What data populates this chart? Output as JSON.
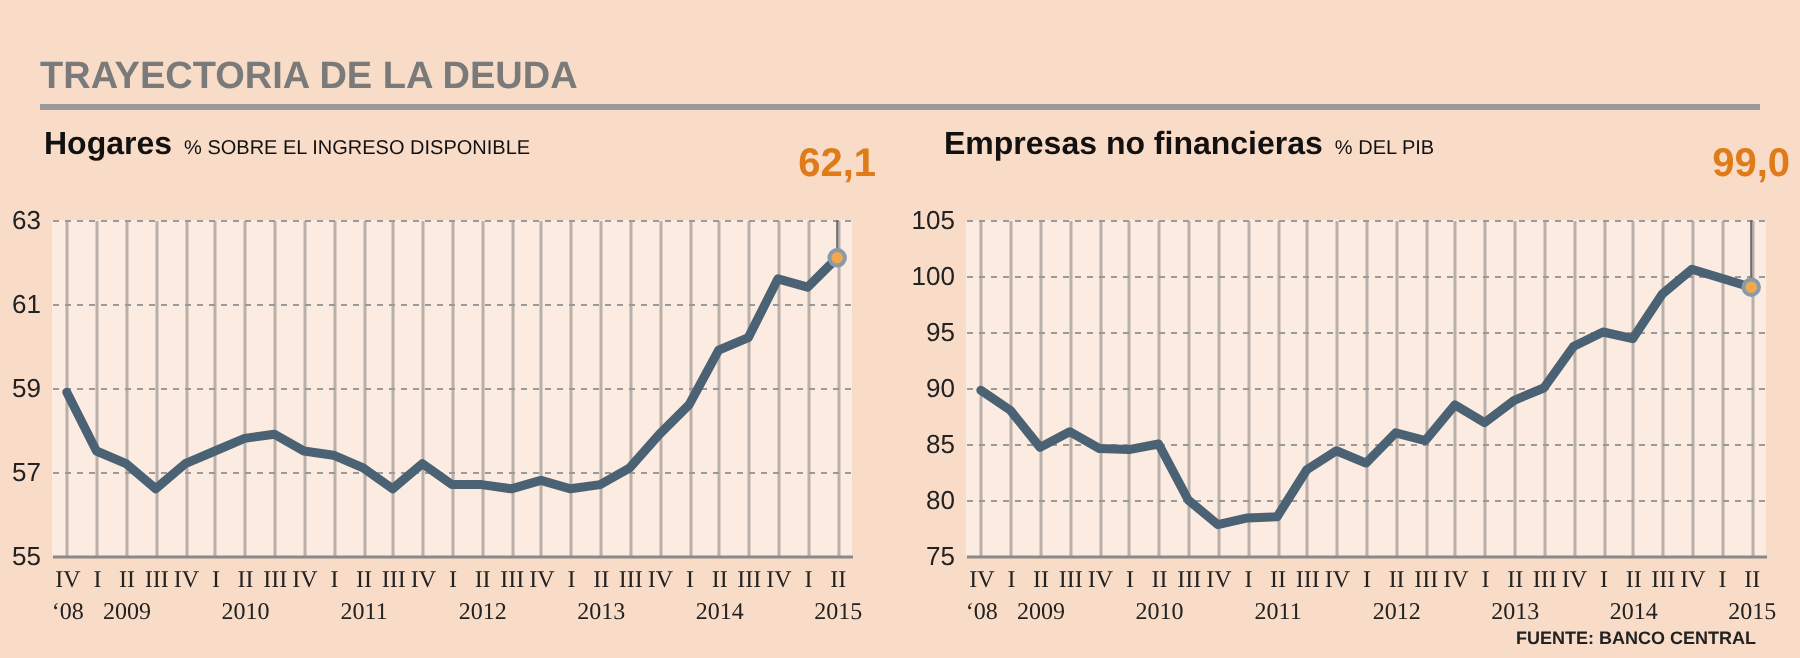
{
  "chart_data": [
    {
      "type": "line",
      "title": "Hogares",
      "subtitle": "% SOBRE EL INGRESO DISPONIBLE",
      "categories": [
        "IV ‘08",
        "I",
        "II 2009",
        "III",
        "IV",
        "I",
        "II 2010",
        "III",
        "IV",
        "I",
        "II 2011",
        "III",
        "IV",
        "I",
        "II 2012",
        "III",
        "IV",
        "I",
        "II 2013",
        "III",
        "IV",
        "I",
        "II 2014",
        "III",
        "IV",
        "I",
        "II 2015"
      ],
      "series": [
        {
          "color": "#4a6274",
          "values": [
            58.9,
            57.5,
            57.2,
            56.6,
            57.2,
            57.5,
            57.8,
            57.9,
            57.5,
            57.4,
            57.1,
            56.6,
            57.2,
            56.7,
            56.7,
            56.6,
            56.8,
            56.6,
            56.7,
            57.1,
            57.9,
            58.6,
            59.9,
            60.2,
            61.6,
            61.4,
            62.1
          ]
        }
      ],
      "ylim": [
        55,
        63
      ],
      "yticks": [
        55,
        57,
        59,
        61,
        63
      ],
      "grid": true,
      "line_style": "solid",
      "annotations": [
        "TRAYECTORIA DE LA DEUDA",
        {
          "text": "62,1",
          "x": "II 2015",
          "y": 62.1
        }
      ]
    },
    {
      "type": "line",
      "title": "Empresas no financieras",
      "subtitle": "% DEL PIB",
      "categories": [
        "IV ‘08",
        "I",
        "II 2009",
        "III",
        "IV",
        "I",
        "II 2010",
        "III",
        "IV",
        "I",
        "II 2011",
        "III",
        "IV",
        "I",
        "II 2012",
        "III",
        "IV",
        "I",
        "II 2013",
        "III",
        "IV",
        "I",
        "II 2014",
        "III",
        "IV",
        "I",
        "II 2015"
      ],
      "series": [
        {
          "color": "#4a6274",
          "values": [
            89.8,
            88.0,
            84.7,
            86.1,
            84.6,
            84.5,
            85.0,
            80.0,
            77.8,
            78.4,
            78.5,
            82.7,
            84.4,
            83.3,
            86.0,
            85.3,
            88.5,
            86.9,
            88.9,
            90.0,
            93.7,
            95.0,
            94.4,
            98.4,
            100.6,
            99.8,
            99.0
          ]
        }
      ],
      "ylim": [
        75,
        105
      ],
      "yticks": [
        75,
        80,
        85,
        90,
        95,
        100,
        105
      ],
      "grid": true,
      "line_style": "solid",
      "annotations": [
        {
          "text": "99,0",
          "x": "II 2015",
          "y": 99.0
        },
        "FUENTE: BANCO CENTRAL"
      ]
    }
  ]
}
